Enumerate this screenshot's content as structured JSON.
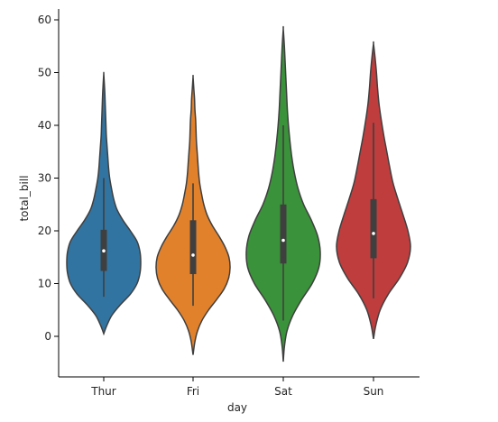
{
  "chart_data": {
    "type": "violin",
    "xlabel": "day",
    "ylabel": "total_bill",
    "ylim": [
      -8,
      62
    ],
    "yticks": [
      0,
      10,
      20,
      30,
      40,
      50,
      60
    ],
    "grid": false,
    "categories": [
      "Thur",
      "Fri",
      "Sat",
      "Sun"
    ],
    "colors": [
      "#3274a1",
      "#e1812c",
      "#3a923a",
      "#c03d3e"
    ],
    "series": [
      {
        "category": "Thur",
        "min": 0.5,
        "max": 49.8,
        "q1": 12.4,
        "median": 16.2,
        "q3": 20.2,
        "whisker_low": 7.5,
        "whisker_high": 30.0,
        "kde_y": [
          0.5,
          2,
          4,
          6,
          8,
          10,
          12,
          14,
          16,
          18,
          20,
          22,
          24,
          26,
          28,
          30,
          32,
          34,
          36,
          38,
          40,
          42,
          44,
          46,
          48,
          49.8
        ],
        "kde_width": [
          0,
          0.08,
          0.22,
          0.45,
          0.72,
          0.9,
          0.98,
          1.0,
          0.98,
          0.9,
          0.72,
          0.52,
          0.36,
          0.27,
          0.21,
          0.16,
          0.13,
          0.11,
          0.09,
          0.07,
          0.06,
          0.05,
          0.04,
          0.03,
          0.015,
          0
        ]
      },
      {
        "category": "Fri",
        "min": -3.5,
        "max": 49.2,
        "q1": 11.8,
        "median": 15.4,
        "q3": 22.0,
        "whisker_low": 5.8,
        "whisker_high": 29.0,
        "kde_y": [
          -3.5,
          -1,
          1,
          3,
          5,
          7,
          9,
          11,
          13,
          15,
          17,
          19,
          21,
          23,
          25,
          27,
          29,
          31,
          33,
          35,
          37,
          39,
          41,
          43,
          45,
          47,
          49.2
        ],
        "kde_width": [
          0,
          0.05,
          0.12,
          0.24,
          0.42,
          0.64,
          0.84,
          0.96,
          1.0,
          0.97,
          0.86,
          0.7,
          0.52,
          0.38,
          0.29,
          0.23,
          0.18,
          0.15,
          0.13,
          0.11,
          0.09,
          0.08,
          0.07,
          0.05,
          0.04,
          0.02,
          0
        ]
      },
      {
        "category": "Sat",
        "min": -4.8,
        "max": 58.3,
        "q1": 13.8,
        "median": 18.2,
        "q3": 25.0,
        "whisker_low": 3.0,
        "whisker_high": 40.0,
        "kde_y": [
          -4.8,
          -2,
          1,
          4,
          7,
          10,
          13,
          16,
          19,
          22,
          25,
          28,
          31,
          34,
          37,
          40,
          43,
          46,
          49,
          52,
          55,
          58.3
        ],
        "kde_width": [
          0,
          0.03,
          0.1,
          0.26,
          0.5,
          0.78,
          0.96,
          1.0,
          0.93,
          0.76,
          0.55,
          0.4,
          0.3,
          0.23,
          0.18,
          0.14,
          0.11,
          0.09,
          0.07,
          0.05,
          0.03,
          0
        ],
        "notes": ""
      },
      {
        "category": "Sun",
        "min": -0.5,
        "max": 55.5,
        "q1": 14.8,
        "median": 19.5,
        "q3": 26.0,
        "whisker_low": 7.2,
        "whisker_high": 40.5,
        "kde_y": [
          -0.5,
          2,
          5,
          8,
          11,
          14,
          17,
          20,
          23,
          26,
          29,
          32,
          35,
          38,
          41,
          44,
          47,
          50,
          53,
          55.5
        ],
        "kde_width": [
          0,
          0.06,
          0.18,
          0.4,
          0.7,
          0.92,
          1.0,
          0.93,
          0.8,
          0.66,
          0.53,
          0.44,
          0.36,
          0.28,
          0.21,
          0.15,
          0.11,
          0.08,
          0.04,
          0
        ]
      }
    ]
  }
}
